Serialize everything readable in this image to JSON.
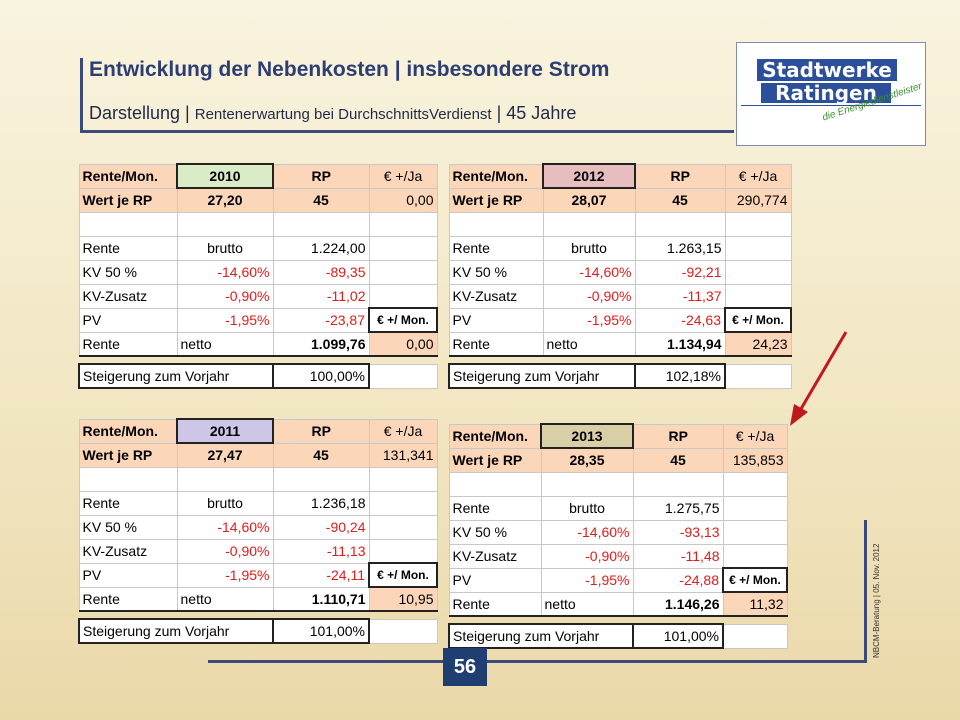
{
  "title": "Entwicklung der Nebenkosten | insbesondere Strom",
  "subtitle": {
    "main": "Darstellung |",
    "small": "Rentenerwartung  bei DurchschnittsVerdienst",
    "tail": "| 45 Jahre"
  },
  "logo": {
    "line1": "Stadtwerke",
    "line2": "Ratingen",
    "tagline": "die Energiedienstleister"
  },
  "page_number": "56",
  "side_text": "NBCM-Beratung | 05. Nov. 2012",
  "colors": {
    "frame": "#3b4a7a",
    "header_fill": "#fbd6b8",
    "negative": "#e11b1b",
    "arrow": "#c0181e"
  },
  "tables": [
    {
      "h1": "Rente/Mon.",
      "year": "2010",
      "year_color": "#d9ecc7",
      "rp_label": "RP",
      "eur_ja": "€ +/Ja",
      "wert_label": "Wert je RP",
      "wert": "27,20",
      "rp": "45",
      "diff_ja": "0,00",
      "rows": [
        {
          "label": "Rente",
          "sub": "brutto",
          "pct": "",
          "val": "1.224,00"
        },
        {
          "label": "KV 50 %",
          "sub": "",
          "pct": "-14,60%",
          "val": "-89,35"
        },
        {
          "label": "KV-Zusatz",
          "sub": "",
          "pct": "-0,90%",
          "val": "-11,02"
        },
        {
          "label": "PV",
          "sub": "",
          "pct": "-1,95%",
          "val": "-23,87",
          "eur_mon": "€ +/ Mon."
        }
      ],
      "netto_label": "Rente",
      "netto_sub": "netto",
      "netto_val": "1.099,76",
      "netto_diff": "0,00",
      "steig_label": "Steigerung zum Vorjahr",
      "steig_val": "100,00%"
    },
    {
      "h1": "Rente/Mon.",
      "year": "2012",
      "year_color": "#e8bdbd",
      "rp_label": "RP",
      "eur_ja": "€ +/Ja",
      "wert_label": "Wert je RP",
      "wert": "28,07",
      "rp": "45",
      "diff_ja": "290,774",
      "rows": [
        {
          "label": "Rente",
          "sub": "brutto",
          "pct": "",
          "val": "1.263,15"
        },
        {
          "label": "KV 50 %",
          "sub": "",
          "pct": "-14,60%",
          "val": "-92,21"
        },
        {
          "label": "KV-Zusatz",
          "sub": "",
          "pct": "-0,90%",
          "val": "-11,37"
        },
        {
          "label": "PV",
          "sub": "",
          "pct": "-1,95%",
          "val": "-24,63",
          "eur_mon": "€ +/ Mon."
        }
      ],
      "netto_label": "Rente",
      "netto_sub": "netto",
      "netto_val": "1.134,94",
      "netto_diff": "24,23",
      "steig_label": "Steigerung zum Vorjahr",
      "steig_val": "102,18%"
    },
    {
      "h1": "Rente/Mon.",
      "year": "2011",
      "year_color": "#cdc6e6",
      "rp_label": "RP",
      "eur_ja": "€ +/Ja",
      "wert_label": "Wert je RP",
      "wert": "27,47",
      "rp": "45",
      "diff_ja": "131,341",
      "rows": [
        {
          "label": "Rente",
          "sub": "brutto",
          "pct": "",
          "val": "1.236,18"
        },
        {
          "label": "KV 50 %",
          "sub": "",
          "pct": "-14,60%",
          "val": "-90,24"
        },
        {
          "label": "KV-Zusatz",
          "sub": "",
          "pct": "-0,90%",
          "val": "-11,13"
        },
        {
          "label": "PV",
          "sub": "",
          "pct": "-1,95%",
          "val": "-24,11",
          "eur_mon": "€ +/ Mon."
        }
      ],
      "netto_label": "Rente",
      "netto_sub": "netto",
      "netto_val": "1.110,71",
      "netto_diff": "10,95",
      "steig_label": "Steigerung zum Vorjahr",
      "steig_val": "101,00%"
    },
    {
      "h1": "Rente/Mon.",
      "year": "2013",
      "year_color": "#d8cfa6",
      "rp_label": "RP",
      "eur_ja": "€ +/Ja",
      "wert_label": "Wert je RP",
      "wert": "28,35",
      "rp": "45",
      "diff_ja": "135,853",
      "rows": [
        {
          "label": "Rente",
          "sub": "brutto",
          "pct": "",
          "val": "1.275,75"
        },
        {
          "label": "KV 50 %",
          "sub": "",
          "pct": "-14,60%",
          "val": "-93,13"
        },
        {
          "label": "KV-Zusatz",
          "sub": "",
          "pct": "-0,90%",
          "val": "-11,48"
        },
        {
          "label": "PV",
          "sub": "",
          "pct": "-1,95%",
          "val": "-24,88",
          "eur_mon": "€ +/ Mon."
        }
      ],
      "netto_label": "Rente",
      "netto_sub": "netto",
      "netto_val": "1.146,26",
      "netto_diff": "11,32",
      "steig_label": "Steigerung zum Vorjahr",
      "steig_val": "101,00%"
    }
  ]
}
